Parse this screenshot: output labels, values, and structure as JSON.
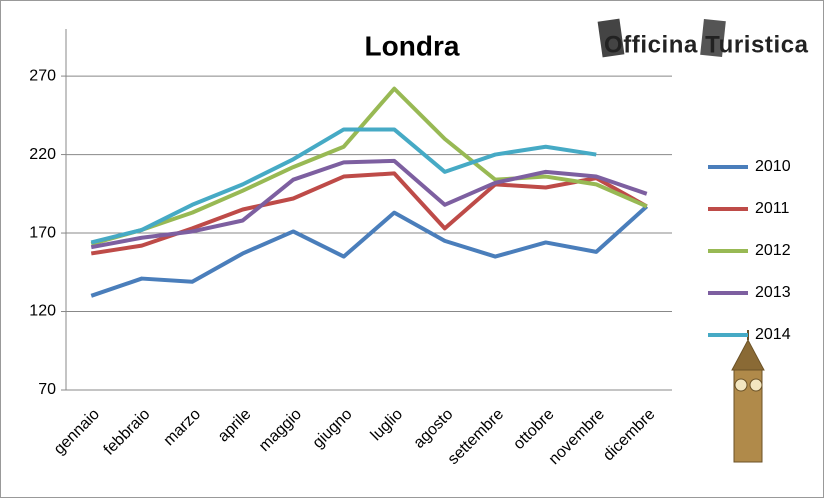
{
  "logo": "Officina Turistica",
  "chart_data": {
    "type": "line",
    "title": "Londra",
    "categories": [
      "gennaio",
      "febbraio",
      "marzo",
      "aprile",
      "maggio",
      "giugno",
      "luglio",
      "agosto",
      "settembre",
      "ottobre",
      "novembre",
      "dicembre"
    ],
    "series": [
      {
        "name": "2010",
        "color": "#4a7ebb",
        "values": [
          130,
          141,
          139,
          157,
          171,
          155,
          183,
          165,
          155,
          164,
          158,
          187
        ]
      },
      {
        "name": "2011",
        "color": "#be4b48",
        "values": [
          157,
          162,
          173,
          185,
          192,
          206,
          208,
          173,
          201,
          199,
          205,
          187
        ]
      },
      {
        "name": "2012",
        "color": "#98b954",
        "values": [
          163,
          172,
          183,
          197,
          212,
          225,
          262,
          230,
          204,
          206,
          201,
          187
        ]
      },
      {
        "name": "2013",
        "color": "#7d5fa0",
        "values": [
          161,
          167,
          171,
          178,
          204,
          215,
          216,
          188,
          202,
          209,
          206,
          195
        ]
      },
      {
        "name": "2014",
        "color": "#46aac5",
        "values": [
          164,
          172,
          188,
          201,
          217,
          236,
          236,
          209,
          220,
          225,
          220,
          null
        ]
      }
    ],
    "ylim": [
      70,
      300
    ],
    "yticks": [
      70,
      120,
      170,
      220,
      270
    ],
    "grid": true,
    "legend": "right"
  }
}
